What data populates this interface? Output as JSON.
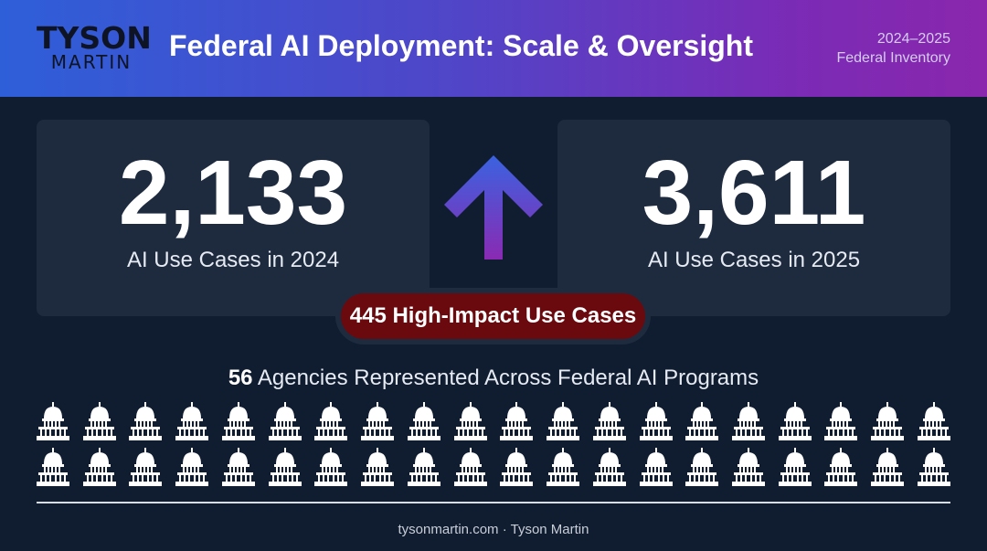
{
  "header": {
    "logo_top": "TYSON",
    "logo_bottom": "MARTIN",
    "title": "Federal AI Deployment: Scale & Oversight",
    "period": "2024–2025",
    "subtitle": "Federal Inventory"
  },
  "stats": {
    "left": {
      "value": "2,133",
      "label": "AI Use Cases in 2024"
    },
    "right": {
      "value": "3,611",
      "label": "AI Use Cases in 2025"
    },
    "arrow_icon": "up-arrow-icon"
  },
  "pill": {
    "label": "445 High-Impact Use Cases"
  },
  "agencies": {
    "count": "56",
    "text": "Agencies Represented Across Federal AI Programs",
    "icon": "capitol-building-icon",
    "icons_shown": 40
  },
  "footer": {
    "site": "tysonmartin.com",
    "separator": "·",
    "name": "Tyson Martin"
  },
  "colors": {
    "background": "#101d30",
    "card": "#1e2b3f",
    "pill": "#6a0a0e",
    "header_start": "#2e5fd9",
    "header_end": "#8a27ad"
  }
}
